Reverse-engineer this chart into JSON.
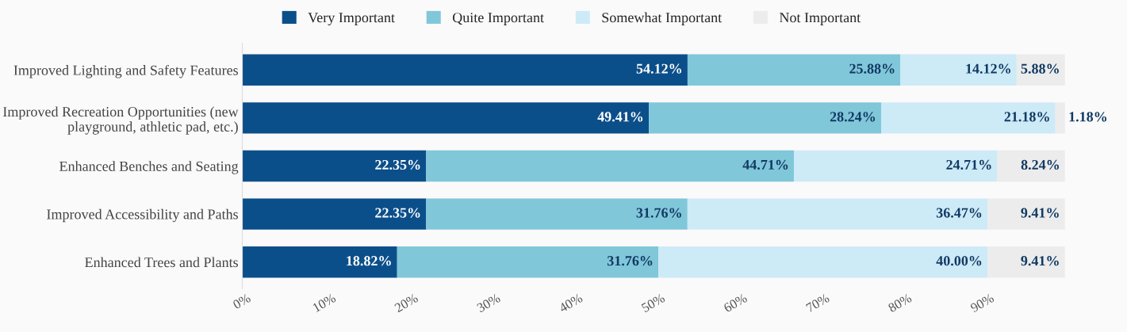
{
  "chart_data": {
    "type": "bar",
    "orientation": "horizontal",
    "stacked": true,
    "categories": [
      "Improved Lighting and Safety Features",
      "Improved Recreation Opportunities (new playground, athletic pad, etc.)",
      "Enhanced Benches and Seating",
      "Improved Accessibility and Paths",
      "Enhanced Trees and Plants"
    ],
    "series": [
      {
        "name": "Very Important",
        "color": "#0b4f8a",
        "values": [
          54.12,
          49.41,
          22.35,
          22.35,
          18.82
        ],
        "value_labels": [
          "54.12%",
          "49.41%",
          "22.35%",
          "22.35%",
          "18.82%"
        ]
      },
      {
        "name": "Quite Important",
        "color": "#80c7da",
        "values": [
          25.88,
          28.24,
          44.71,
          31.76,
          31.76
        ],
        "value_labels": [
          "25.88%",
          "28.24%",
          "44.71%",
          "31.76%",
          "31.76%"
        ]
      },
      {
        "name": "Somewhat Important",
        "color": "#cdeaf7",
        "values": [
          14.12,
          21.18,
          24.71,
          36.47,
          40.0
        ],
        "value_labels": [
          "14.12%",
          "21.18%",
          "24.71%",
          "36.47%",
          "40.00%"
        ]
      },
      {
        "name": "Not Important",
        "color": "#ececec",
        "values": [
          5.88,
          1.18,
          8.24,
          9.41,
          9.41
        ],
        "value_labels": [
          "5.88%",
          "1.18%",
          "8.24%",
          "9.41%",
          "9.41%"
        ]
      }
    ],
    "xlim": [
      0,
      100
    ],
    "xticks": [
      {
        "value": 0,
        "label": "0%"
      },
      {
        "value": 10,
        "label": "10%"
      },
      {
        "value": 20,
        "label": "20%"
      },
      {
        "value": 30,
        "label": "30%"
      },
      {
        "value": 40,
        "label": "40%"
      },
      {
        "value": 50,
        "label": "50%"
      },
      {
        "value": 60,
        "label": "60%"
      },
      {
        "value": 70,
        "label": "70%"
      },
      {
        "value": 80,
        "label": "80%"
      },
      {
        "value": 90,
        "label": "90%"
      }
    ],
    "legend": "top",
    "grid": false
  }
}
